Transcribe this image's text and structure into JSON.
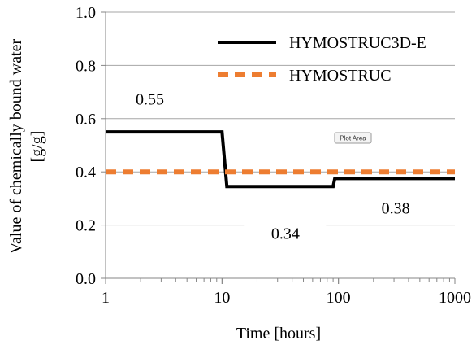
{
  "chart_data": {
    "type": "line",
    "xlabel": "Time [hours]",
    "ylabel_line1": "Value of chemically bound water",
    "ylabel_line2": "[g/g]",
    "x_scale": "log",
    "xlim": [
      1,
      1000
    ],
    "ylim": [
      0,
      1
    ],
    "x_ticks": [
      1,
      10,
      100,
      1000
    ],
    "x_tick_labels": [
      "1",
      "10",
      "100",
      "1000"
    ],
    "y_ticks": [
      0,
      0.2,
      0.4,
      0.6,
      0.8,
      1.0
    ],
    "y_tick_labels": [
      "0.0",
      "0.2",
      "0.4",
      "0.6",
      "0.8",
      "1.0"
    ],
    "grid": "horizontal",
    "legend_position": "top-right",
    "series": [
      {
        "name": "HYMOSTRUC3D-E",
        "style": "solid",
        "color": "#000000",
        "x": [
          1,
          10,
          11,
          90,
          93,
          1000
        ],
        "y": [
          0.55,
          0.55,
          0.345,
          0.345,
          0.375,
          0.375
        ]
      },
      {
        "name": "HYMOSTRUC",
        "style": "dashed",
        "color": "#ed7d31",
        "x": [
          1,
          1000
        ],
        "y": [
          0.4,
          0.4
        ]
      }
    ],
    "annotations": [
      {
        "text": "0.55",
        "x": 2.4,
        "y": 0.675
      },
      {
        "text": "0.34",
        "x": 35,
        "y": 0.17
      },
      {
        "text": "0.38",
        "x": 310,
        "y": 0.265
      }
    ],
    "tooltip": "Plot Area"
  }
}
